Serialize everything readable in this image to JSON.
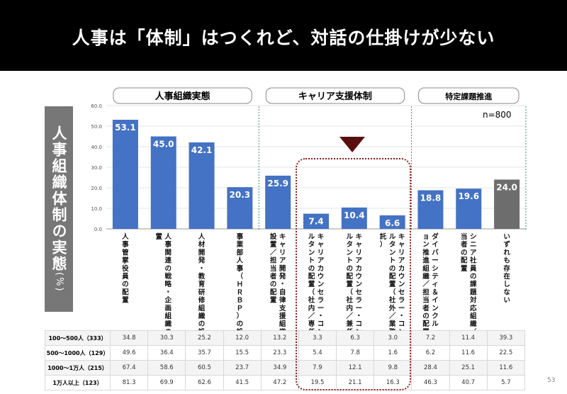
{
  "title": "人事は「体制」はつくれど、対話の仕掛けが少ない",
  "side_label": {
    "text": "人事組織体制の実態",
    "unit": "(%)"
  },
  "n_label": "n=800",
  "page_number": "53",
  "colors": {
    "bar": "#4472c4",
    "bar_highlight": "#6d6d6d",
    "title_bg": "#000000",
    "highlight_box": "#8b1a1a"
  },
  "chart_data": {
    "type": "bar",
    "ylim": [
      0,
      60
    ],
    "yticks": [
      "0.0",
      "10.0",
      "20.0",
      "30.0",
      "40.0",
      "50.0",
      "60.0"
    ],
    "groups": [
      {
        "label": "人事組織実態",
        "from": 0,
        "to": 3
      },
      {
        "label": "キャリア支援体制",
        "from": 4,
        "to": 7
      },
      {
        "label": "特定課題推進",
        "from": 8,
        "to": 10
      }
    ],
    "categories": [
      "人事管掌役員の配置",
      "人事関連の戦略・企画組織の設置",
      "人材開発・教育研修組織の設置",
      "事業部人事（ＨＲＢＰ）の設置",
      "キャリア開発・自律支援組織の設置／担当者の配置",
      "キャリアカウンセラー・コンサルタントの配置（社内／専任）",
      "キャリアカウンセラー・コンサルタントの配置（社内／兼任）",
      "キャリアカウンセラー・コンサルタントの配置（社外／業務委託）",
      "ダイバーシティ＆インクルージョン推進組織／担当者の配置",
      "シニア社員の課題対応組織／担当者の配置",
      "いずれも存在しない"
    ],
    "values": [
      53.1,
      45.0,
      42.1,
      20.3,
      25.9,
      7.4,
      10.4,
      6.6,
      18.8,
      19.6,
      24.0
    ],
    "value_labels": [
      "53.1",
      "45.0",
      "42.1",
      "20.3",
      "25.9",
      "7.4",
      "10.4",
      "6.6",
      "18.8",
      "19.6",
      "24.0"
    ],
    "highlight_index": 10,
    "table": {
      "rows": [
        {
          "label": "100～500人（333）",
          "values": [
            "34.8",
            "30.3",
            "25.2",
            "12.0",
            "13.2",
            "3.3",
            "6.3",
            "3.0",
            "7.2",
            "11.4",
            "39.3"
          ]
        },
        {
          "label": "500～1000人（129）",
          "values": [
            "49.6",
            "36.4",
            "35.7",
            "15.5",
            "23.3",
            "5.4",
            "7.8",
            "1.6",
            "6.2",
            "11.6",
            "22.5"
          ]
        },
        {
          "label": "1000～1万人（215）",
          "values": [
            "67.4",
            "58.6",
            "60.5",
            "23.7",
            "34.9",
            "7.9",
            "12.1",
            "9.8",
            "28.4",
            "25.1",
            "11.6"
          ]
        },
        {
          "label": "1万人以上（123）",
          "values": [
            "81.3",
            "69.9",
            "62.6",
            "41.5",
            "47.2",
            "19.5",
            "21.1",
            "16.3",
            "46.3",
            "40.7",
            "5.7"
          ]
        }
      ]
    }
  }
}
